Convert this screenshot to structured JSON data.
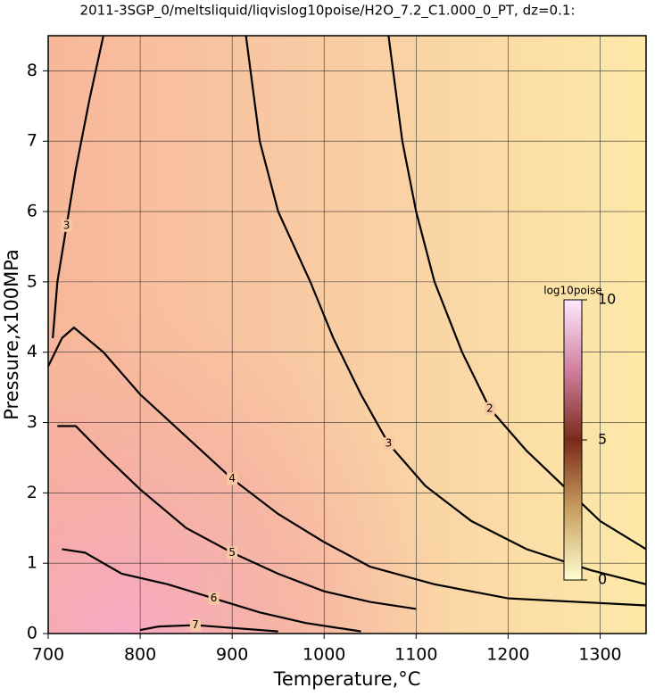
{
  "chart_data": {
    "type": "contour",
    "title": "2011-3SGP_0/meltsliquid/liqvislog10poise/H2O_7.2_C1.000_0_PT, dz=0.1:",
    "x_label": "Temperature,°C",
    "y_label": "Pressure,x100MPa",
    "xlim": [
      700,
      1350
    ],
    "ylim": [
      0,
      8.5
    ],
    "xticks": [
      700,
      800,
      900,
      1000,
      1100,
      1200,
      1300
    ],
    "yticks": [
      0,
      1,
      2,
      3,
      4,
      5,
      6,
      7,
      8
    ],
    "grid": true,
    "contours": [
      {
        "level": 2,
        "x": [
          1070,
          1085,
          1100,
          1120,
          1150,
          1180,
          1220,
          1260,
          1300,
          1350
        ],
        "y": [
          8.5,
          7,
          6,
          5,
          4,
          3.2,
          2.6,
          2.1,
          1.6,
          1.2
        ]
      },
      {
        "level": 3,
        "x": [
          915,
          930,
          950,
          985,
          1010,
          1040,
          1070,
          1110,
          1160,
          1220,
          1290,
          1350
        ],
        "y": [
          8.5,
          7,
          6,
          5,
          4.2,
          3.4,
          2.7,
          2.1,
          1.6,
          1.2,
          0.9,
          0.7
        ]
      },
      {
        "level": 3,
        "x": [
          760,
          745,
          730,
          720,
          710,
          705
        ],
        "y": [
          8.5,
          7.6,
          6.6,
          5.8,
          5,
          4.2
        ]
      },
      {
        "level": 4,
        "x": [
          700,
          715,
          728,
          760,
          800,
          850,
          900,
          950,
          1000,
          1050,
          1120,
          1200,
          1350
        ],
        "y": [
          3.8,
          4.2,
          4.35,
          4.0,
          3.4,
          2.8,
          2.2,
          1.7,
          1.3,
          0.95,
          0.7,
          0.5,
          0.4
        ]
      },
      {
        "level": 5,
        "x": [
          710,
          730,
          760,
          800,
          850,
          900,
          950,
          1000,
          1050,
          1100
        ],
        "y": [
          2.95,
          2.95,
          2.55,
          2.05,
          1.5,
          1.15,
          0.85,
          0.6,
          0.45,
          0.35
        ]
      },
      {
        "level": 6,
        "x": [
          715,
          740,
          780,
          830,
          880,
          930,
          980,
          1040
        ],
        "y": [
          1.2,
          1.15,
          0.85,
          0.7,
          0.5,
          0.3,
          0.15,
          0.03
        ]
      },
      {
        "level": 7,
        "x": [
          800,
          820,
          860,
          900,
          950
        ],
        "y": [
          0.05,
          0.1,
          0.12,
          0.08,
          0.03
        ]
      }
    ],
    "colorbar": {
      "label": "log10poise",
      "lim": [
        0,
        10
      ],
      "ticks": [
        0,
        5,
        10
      ]
    }
  }
}
